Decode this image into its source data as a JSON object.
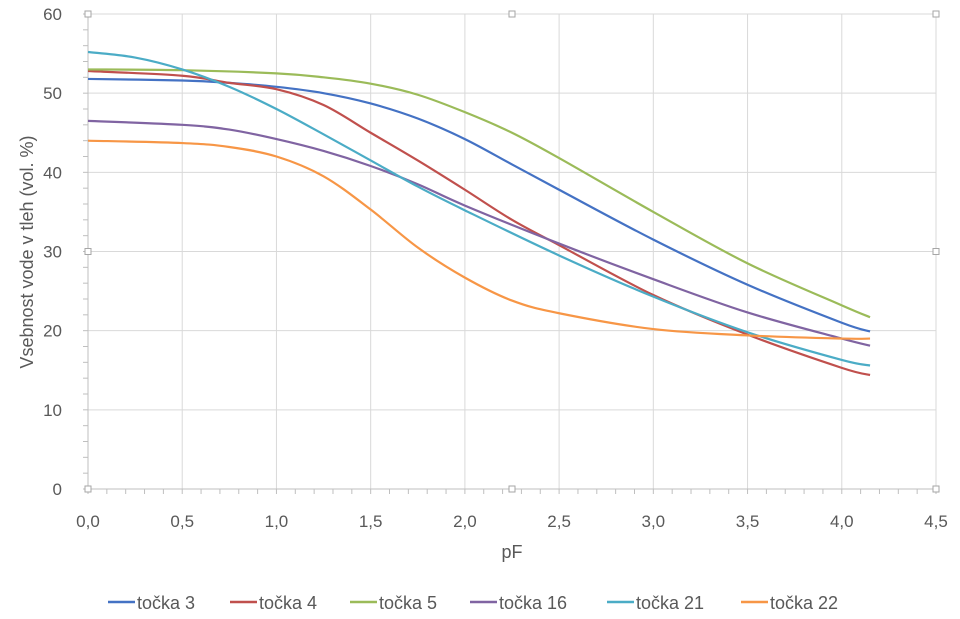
{
  "chart_data": {
    "type": "line",
    "title": "",
    "xlabel": "pF",
    "ylabel": "Vsebnost vode v tleh (vol. %)",
    "xlim": [
      0,
      4.5
    ],
    "ylim": [
      0,
      60
    ],
    "xticks": [
      "0,0",
      "0,5",
      "1,0",
      "1,5",
      "2,0",
      "2,5",
      "3,0",
      "3,5",
      "4,0",
      "4,5"
    ],
    "yticks": [
      "0",
      "10",
      "20",
      "30",
      "40",
      "50",
      "60"
    ],
    "grid": true,
    "legend_position": "bottom",
    "series": [
      {
        "name": "točka 3",
        "color": "#4472C4",
        "x": [
          0,
          0.5,
          0.75,
          1.0,
          1.25,
          1.5,
          1.75,
          2.0,
          2.25,
          2.5,
          3.0,
          3.5,
          4.0,
          4.15
        ],
        "y": [
          51.8,
          51.6,
          51.3,
          50.8,
          50.0,
          48.7,
          46.8,
          44.2,
          41.0,
          37.8,
          31.5,
          25.8,
          21.0,
          19.9
        ]
      },
      {
        "name": "točka 4",
        "color": "#C0504D",
        "x": [
          0,
          0.5,
          0.75,
          1.0,
          1.25,
          1.5,
          1.75,
          2.0,
          2.25,
          2.5,
          3.0,
          3.5,
          4.0,
          4.15
        ],
        "y": [
          52.8,
          52.2,
          51.3,
          50.5,
          48.5,
          45.0,
          41.5,
          37.8,
          34.0,
          30.8,
          24.5,
          19.5,
          15.3,
          14.4
        ]
      },
      {
        "name": "točka 5",
        "color": "#9BBB59",
        "x": [
          0,
          0.5,
          1.0,
          1.25,
          1.5,
          1.75,
          2.0,
          2.25,
          2.5,
          3.0,
          3.5,
          4.0,
          4.15
        ],
        "y": [
          53.0,
          52.9,
          52.5,
          52.0,
          51.2,
          49.8,
          47.6,
          45.0,
          41.8,
          35.0,
          28.5,
          23.2,
          21.7
        ]
      },
      {
        "name": "točka 16",
        "color": "#8064A2",
        "x": [
          0,
          0.5,
          0.75,
          1.0,
          1.25,
          1.5,
          1.75,
          2.0,
          2.5,
          3.0,
          3.5,
          4.0,
          4.15
        ],
        "y": [
          46.5,
          46.0,
          45.4,
          44.2,
          42.7,
          40.8,
          38.5,
          35.8,
          31.0,
          26.5,
          22.3,
          19.0,
          18.1
        ]
      },
      {
        "name": "točka 21",
        "color": "#4BACC6",
        "x": [
          0,
          0.25,
          0.5,
          0.75,
          1.0,
          1.25,
          1.5,
          1.75,
          2.0,
          2.5,
          3.0,
          3.5,
          4.0,
          4.15
        ],
        "y": [
          55.2,
          54.5,
          53.0,
          50.8,
          48.0,
          44.8,
          41.5,
          38.2,
          35.2,
          29.5,
          24.3,
          19.8,
          16.3,
          15.6
        ]
      },
      {
        "name": "točka 22",
        "color": "#F79646",
        "x": [
          0,
          0.5,
          0.75,
          1.0,
          1.25,
          1.5,
          1.75,
          2.0,
          2.25,
          2.5,
          3.0,
          3.5,
          4.0,
          4.15
        ],
        "y": [
          44.0,
          43.7,
          43.2,
          42.0,
          39.5,
          35.3,
          30.5,
          26.7,
          23.8,
          22.2,
          20.2,
          19.4,
          19.0,
          19.0
        ]
      }
    ]
  }
}
